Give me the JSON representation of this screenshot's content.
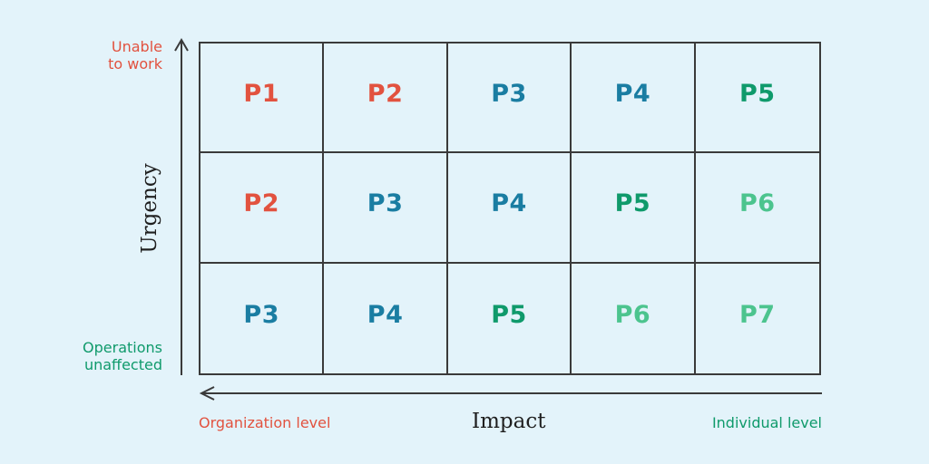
{
  "colors": {
    "P1": "#e2523f",
    "P2": "#e2523f",
    "P3": "#1a7da2",
    "P4": "#1a7da2",
    "P5": "#0f9a6b",
    "P6": "#4cc48e",
    "P7": "#4cc48e",
    "line": "#3a3a3a",
    "background": "#e3f3fa"
  },
  "y_axis": {
    "title": "Urgency",
    "top_label": "Unable\nto work",
    "bottom_label": "Operations\nunaffected"
  },
  "x_axis": {
    "title": "Impact",
    "left_label": "Organization level",
    "right_label": "Individual level"
  },
  "matrix": [
    [
      "P1",
      "P2",
      "P3",
      "P4",
      "P5"
    ],
    [
      "P2",
      "P3",
      "P4",
      "P5",
      "P6"
    ],
    [
      "P3",
      "P4",
      "P5",
      "P6",
      "P7"
    ]
  ]
}
